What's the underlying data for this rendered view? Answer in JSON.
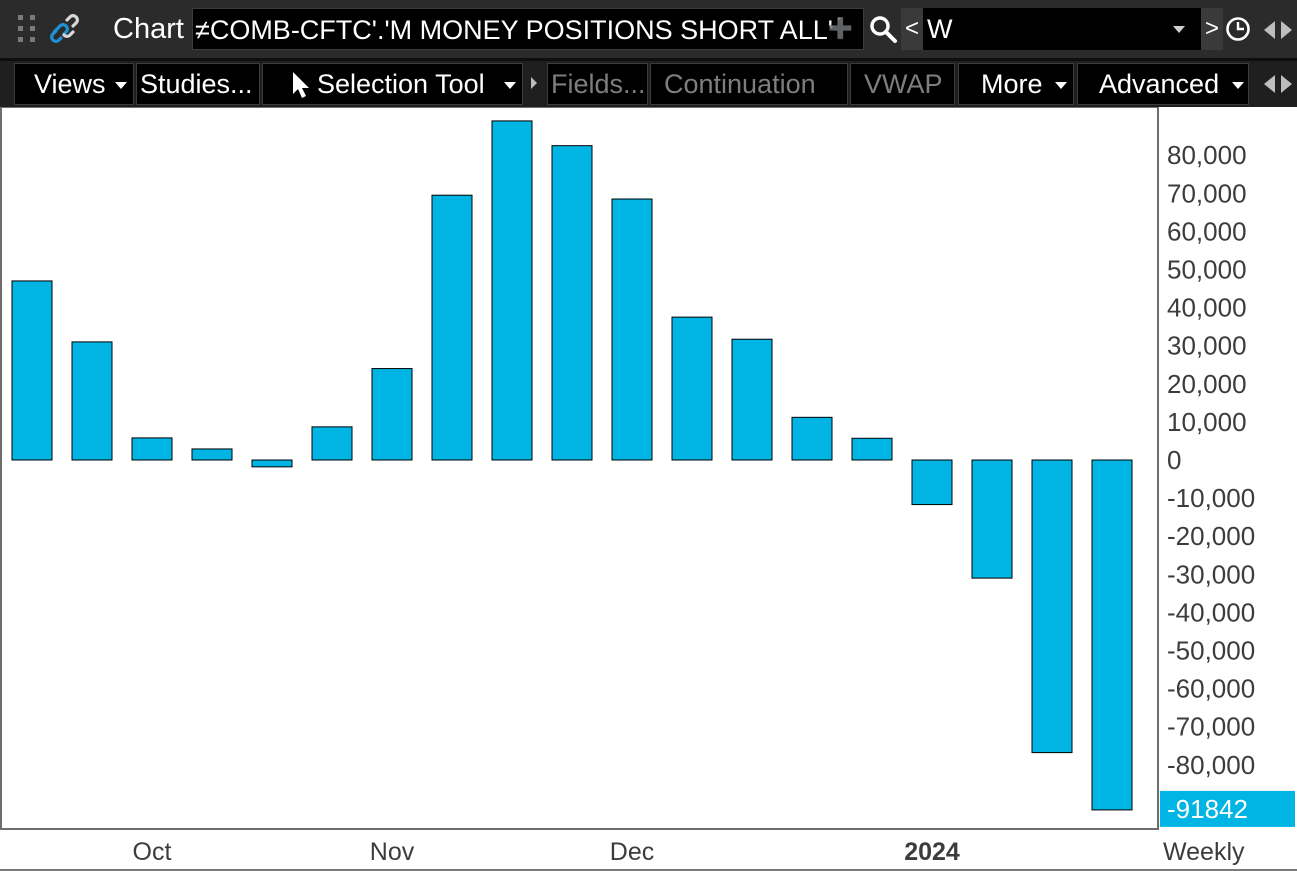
{
  "window": {
    "title": "Chart",
    "symbol": "≠COMB-CFTC'.'M MONEY POSITIONS SHORT ALL'",
    "aggregation": "W",
    "aggregation_prev": "<",
    "aggregation_next": ">"
  },
  "toolbar": {
    "views": "Views",
    "studies": "Studies...",
    "selection_tool": "Selection Tool",
    "fields": "Fields...",
    "continuation": "Continuation",
    "vwap": "VWAP",
    "more": "More",
    "advanced": "Advanced"
  },
  "colors": {
    "bar_fill": "#00b4e4",
    "bar_stroke": "#000000",
    "last_value_bubble": "#00b4e4",
    "title_bar": "#2b2b2b",
    "toolbar": "#1f1f1f"
  },
  "icons": [
    "grip-icon",
    "link-icon",
    "search-icon",
    "clock-icon",
    "pointer-icon",
    "scroll-arrows-icon"
  ],
  "chart_data": {
    "type": "bar",
    "x_tick_labels": [
      {
        "label": "Oct",
        "bar_index": 2,
        "bold": false
      },
      {
        "label": "Nov",
        "bar_index": 6,
        "bold": false
      },
      {
        "label": "Dec",
        "bar_index": 10,
        "bold": false
      },
      {
        "label": "2024",
        "bar_index": 15,
        "bold": true
      }
    ],
    "values": [
      47000,
      31000,
      5800,
      2900,
      -1800,
      8700,
      24000,
      69500,
      89000,
      82500,
      68500,
      37500,
      31700,
      11200,
      5700,
      -11700,
      -31000,
      -76800,
      -91842
    ],
    "ylim": [
      -91842,
      88000
    ],
    "y_ticks": [
      80000,
      70000,
      60000,
      50000,
      40000,
      30000,
      20000,
      10000,
      0,
      -10000,
      -20000,
      -30000,
      -40000,
      -50000,
      -60000,
      -70000,
      -80000
    ],
    "y_tick_labels": [
      "80,000",
      "70,000",
      "60,000",
      "50,000",
      "40,000",
      "30,000",
      "20,000",
      "10,000",
      "0",
      "-10,000",
      "-20,000",
      "-30,000",
      "-40,000",
      "-50,000",
      "-60,000",
      "-70,000",
      "-80,000"
    ],
    "last_value_label": "-91842",
    "period_label": "Weekly",
    "grid": false,
    "legend": "none"
  }
}
